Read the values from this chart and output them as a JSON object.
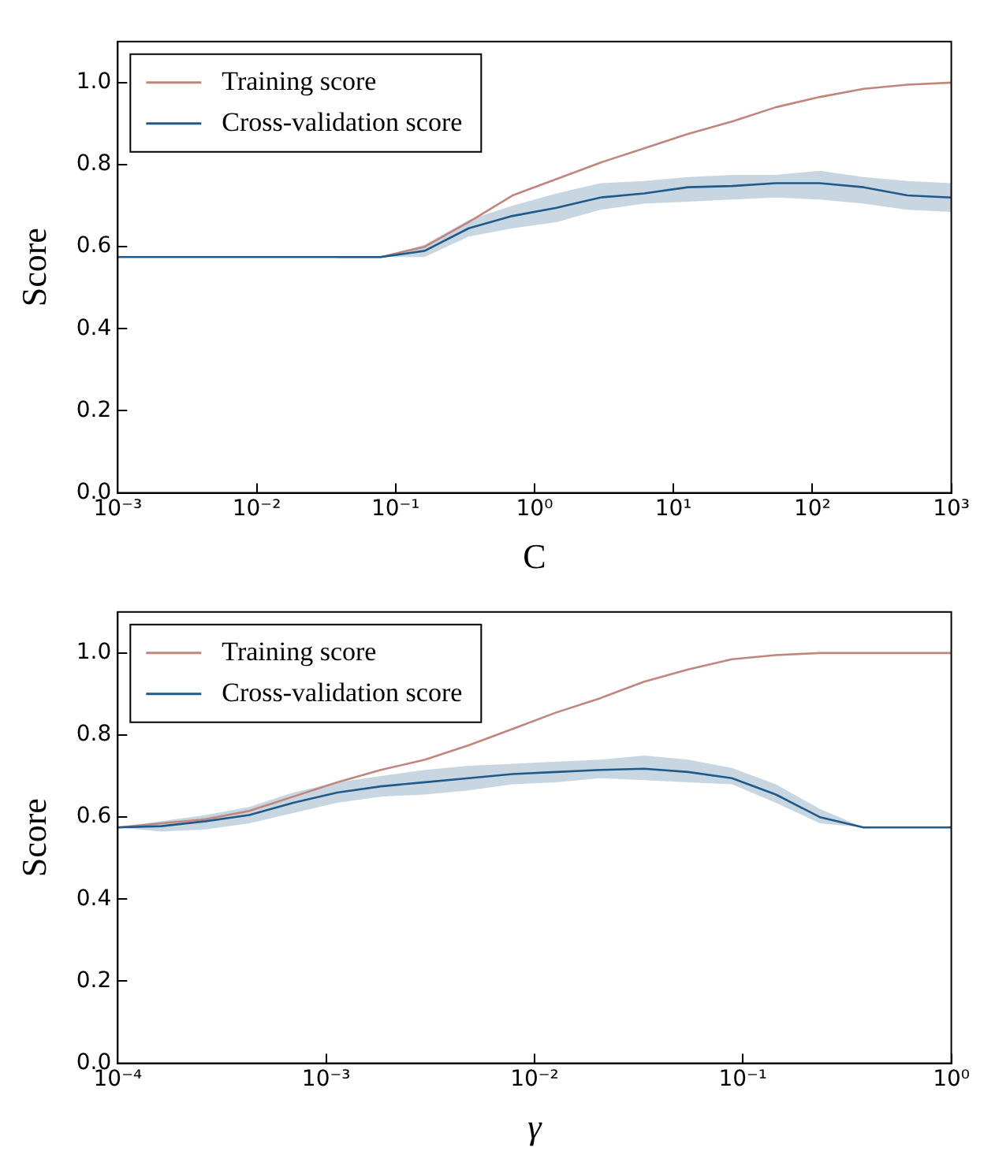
{
  "chart_data": [
    {
      "type": "line",
      "xlabel": "C",
      "ylabel": "Score",
      "log": "x",
      "grid": false,
      "legend": "top left",
      "marker": "none",
      "line_style": "solid",
      "xlim": [
        0.001,
        1000
      ],
      "xticks": [
        {
          "value": 0.001,
          "label": "10⁻³"
        },
        {
          "value": 0.01,
          "label": "10⁻²"
        },
        {
          "value": 0.1,
          "label": "10⁻¹"
        },
        {
          "value": 1,
          "label": "10⁰"
        },
        {
          "value": 10,
          "label": "10¹"
        },
        {
          "value": 100,
          "label": "10²"
        },
        {
          "value": 1000,
          "label": "10³"
        }
      ],
      "ylim": [
        0,
        1.1
      ],
      "yticks": [
        {
          "value": 0,
          "label": "0.0"
        },
        {
          "value": 0.2,
          "label": "0.2"
        },
        {
          "value": 0.4,
          "label": "0.4"
        },
        {
          "value": 0.6,
          "label": "0.6"
        },
        {
          "value": 0.8,
          "label": "0.8"
        },
        {
          "value": 1,
          "label": "1.0"
        }
      ],
      "x": [
        0.001,
        0.00207,
        0.00428,
        0.00886,
        0.0183,
        0.0379,
        0.0785,
        0.162,
        0.336,
        0.695,
        1.44,
        2.98,
        6.16,
        12.7,
        26.4,
        54.6,
        113,
        234,
        483,
        1000
      ],
      "series": [
        {
          "name": "Training score",
          "color": "#c0867c",
          "values": [
            null,
            null,
            null,
            null,
            null,
            0.575,
            0.575,
            0.6,
            0.66,
            0.725,
            0.765,
            0.805,
            0.84,
            0.875,
            0.905,
            0.94,
            0.965,
            0.985,
            0.995,
            1.0
          ]
        },
        {
          "name": "Cross-validation score",
          "color": "#1f5a8a",
          "values": [
            0.575,
            0.575,
            0.575,
            0.575,
            0.575,
            0.575,
            0.575,
            0.59,
            0.645,
            0.675,
            0.695,
            0.72,
            0.73,
            0.745,
            0.748,
            0.755,
            0.755,
            0.745,
            0.725,
            0.72
          ],
          "lower": [
            0.575,
            0.575,
            0.575,
            0.575,
            0.575,
            0.575,
            0.575,
            0.575,
            0.625,
            0.645,
            0.66,
            0.69,
            0.705,
            0.71,
            0.715,
            0.72,
            0.715,
            0.705,
            0.69,
            0.685
          ],
          "upper": [
            0.575,
            0.575,
            0.575,
            0.575,
            0.575,
            0.575,
            0.575,
            0.605,
            0.665,
            0.7,
            0.73,
            0.755,
            0.76,
            0.77,
            0.775,
            0.775,
            0.785,
            0.77,
            0.76,
            0.755
          ]
        }
      ]
    },
    {
      "type": "line",
      "xlabel": "γ",
      "ylabel": "Score",
      "log": "x",
      "grid": false,
      "legend": "top left",
      "marker": "none",
      "line_style": "solid",
      "xlim": [
        0.0001,
        1
      ],
      "xticks": [
        {
          "value": 0.0001,
          "label": "10⁻⁴"
        },
        {
          "value": 0.001,
          "label": "10⁻³"
        },
        {
          "value": 0.01,
          "label": "10⁻²"
        },
        {
          "value": 0.1,
          "label": "10⁻¹"
        },
        {
          "value": 1,
          "label": "10⁰"
        }
      ],
      "ylim": [
        0,
        1.1
      ],
      "yticks": [
        {
          "value": 0,
          "label": "0.0"
        },
        {
          "value": 0.2,
          "label": "0.2"
        },
        {
          "value": 0.4,
          "label": "0.4"
        },
        {
          "value": 0.6,
          "label": "0.6"
        },
        {
          "value": 0.8,
          "label": "0.8"
        },
        {
          "value": 1,
          "label": "1.0"
        }
      ],
      "x": [
        0.0001,
        0.000162,
        0.000264,
        0.000428,
        0.000695,
        0.00113,
        0.00183,
        0.00298,
        0.00483,
        0.00785,
        0.0127,
        0.0207,
        0.0336,
        0.0546,
        0.0886,
        0.144,
        0.234,
        0.379,
        0.616,
        1
      ],
      "series": [
        {
          "name": "Training score",
          "color": "#c0867c",
          "values": [
            0.575,
            0.585,
            0.595,
            0.615,
            0.65,
            0.685,
            0.715,
            0.74,
            0.775,
            0.815,
            0.855,
            0.89,
            0.93,
            0.96,
            0.985,
            0.995,
            1.0,
            1.0,
            1.0,
            1.0
          ]
        },
        {
          "name": "Cross-validation score",
          "color": "#1f5a8a",
          "values": [
            0.575,
            0.578,
            0.59,
            0.605,
            0.635,
            0.66,
            0.675,
            0.685,
            0.695,
            0.705,
            0.71,
            0.715,
            0.718,
            0.71,
            0.695,
            0.655,
            0.6,
            0.575,
            0.575,
            0.575
          ],
          "lower": [
            0.575,
            0.565,
            0.57,
            0.585,
            0.61,
            0.635,
            0.65,
            0.655,
            0.665,
            0.68,
            0.685,
            0.695,
            0.69,
            0.685,
            0.68,
            0.635,
            0.585,
            0.575,
            0.575,
            0.575
          ],
          "upper": [
            0.575,
            0.59,
            0.605,
            0.625,
            0.66,
            0.685,
            0.7,
            0.715,
            0.725,
            0.73,
            0.735,
            0.74,
            0.75,
            0.74,
            0.72,
            0.68,
            0.62,
            0.575,
            0.575,
            0.575
          ]
        }
      ]
    }
  ]
}
